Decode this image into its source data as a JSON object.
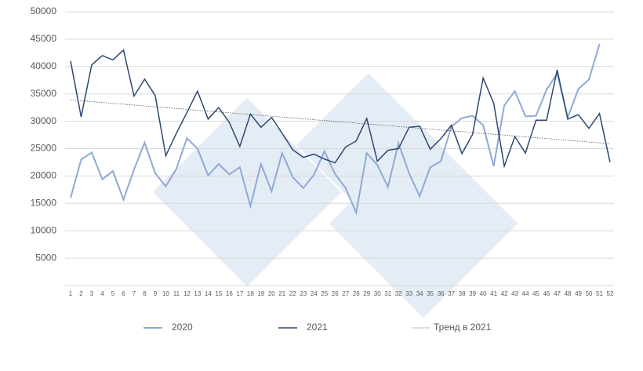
{
  "chart_data": {
    "type": "line",
    "categories": [
      1,
      2,
      3,
      4,
      5,
      6,
      7,
      8,
      9,
      10,
      11,
      12,
      13,
      14,
      15,
      16,
      17,
      18,
      19,
      20,
      21,
      22,
      23,
      24,
      25,
      26,
      27,
      28,
      29,
      30,
      31,
      32,
      33,
      34,
      35,
      36,
      37,
      38,
      39,
      40,
      41,
      42,
      43,
      44,
      45,
      46,
      47,
      48,
      49,
      50,
      51,
      52
    ],
    "series": [
      {
        "name": "2020",
        "color": "#8fa9d6",
        "values": [
          16000,
          23000,
          24300,
          19400,
          20900,
          15700,
          21200,
          26100,
          20500,
          18100,
          21300,
          26900,
          25000,
          20100,
          22200,
          20300,
          21600,
          14500,
          22200,
          17200,
          24200,
          19800,
          17800,
          20200,
          24500,
          20400,
          17800,
          13300,
          24200,
          22000,
          18000,
          26000,
          20500,
          16300,
          21600,
          22700,
          29000,
          30600,
          31000,
          29300,
          21800,
          32900,
          35500,
          30900,
          31000,
          35800,
          38700,
          30700,
          35900,
          37600,
          44100,
          null
        ]
      },
      {
        "name": "2021",
        "color": "#2c4770",
        "values": [
          41000,
          30800,
          40300,
          42000,
          41200,
          43000,
          34600,
          37700,
          34700,
          23700,
          27800,
          31600,
          35500,
          30400,
          32500,
          29800,
          25400,
          31300,
          28900,
          30700,
          27800,
          24800,
          23400,
          24000,
          23100,
          22400,
          25300,
          26400,
          30500,
          22700,
          24700,
          25000,
          28900,
          29100,
          24900,
          26800,
          29300,
          24100,
          27600,
          37900,
          33300,
          21800,
          27200,
          24200,
          30200,
          30200,
          39400,
          30400,
          31200,
          28700,
          31400,
          22500
        ]
      }
    ],
    "trend": {
      "name": "Тренд в 2021",
      "color": "#555555",
      "start": 33900,
      "end": 25900
    },
    "ylim": [
      0,
      50000
    ],
    "yticks": [
      5000,
      10000,
      15000,
      20000,
      25000,
      30000,
      35000,
      40000,
      45000,
      50000
    ],
    "grid": true,
    "legend": "bottom"
  }
}
